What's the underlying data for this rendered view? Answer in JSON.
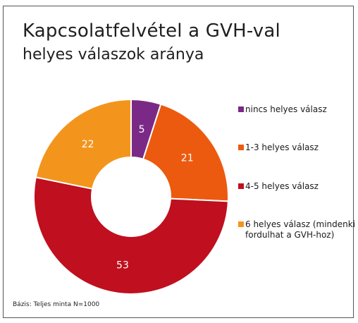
{
  "chart_data": {
    "type": "pie",
    "title": "Kapcsolatfelvétel a GVH-val",
    "subtitle": "helyes válaszok aránya",
    "categories": [
      "nincs helyes válasz",
      "1-3 helyes válasz",
      "4-5 helyes válasz",
      "6 helyes válasz (mindenki fordulhat a GVH-hoz)"
    ],
    "values": [
      5,
      21,
      53,
      22
    ],
    "colors": [
      "#7a2a86",
      "#ec5a0f",
      "#c00f1e",
      "#f3951c"
    ],
    "legend": "right",
    "donut": true
  },
  "legend": {
    "items": [
      {
        "label": "nincs helyes válasz",
        "color": "#7a2a86"
      },
      {
        "label": "1-3 helyes válasz",
        "color": "#ec5a0f"
      },
      {
        "label": "4-5 helyes válasz",
        "color": "#c00f1e"
      },
      {
        "label": "6 helyes válasz (mindenki fordulhat a GVH-hoz)",
        "color": "#f3951c"
      }
    ]
  },
  "footnote": "Bázis: Teljes minta N=1000"
}
